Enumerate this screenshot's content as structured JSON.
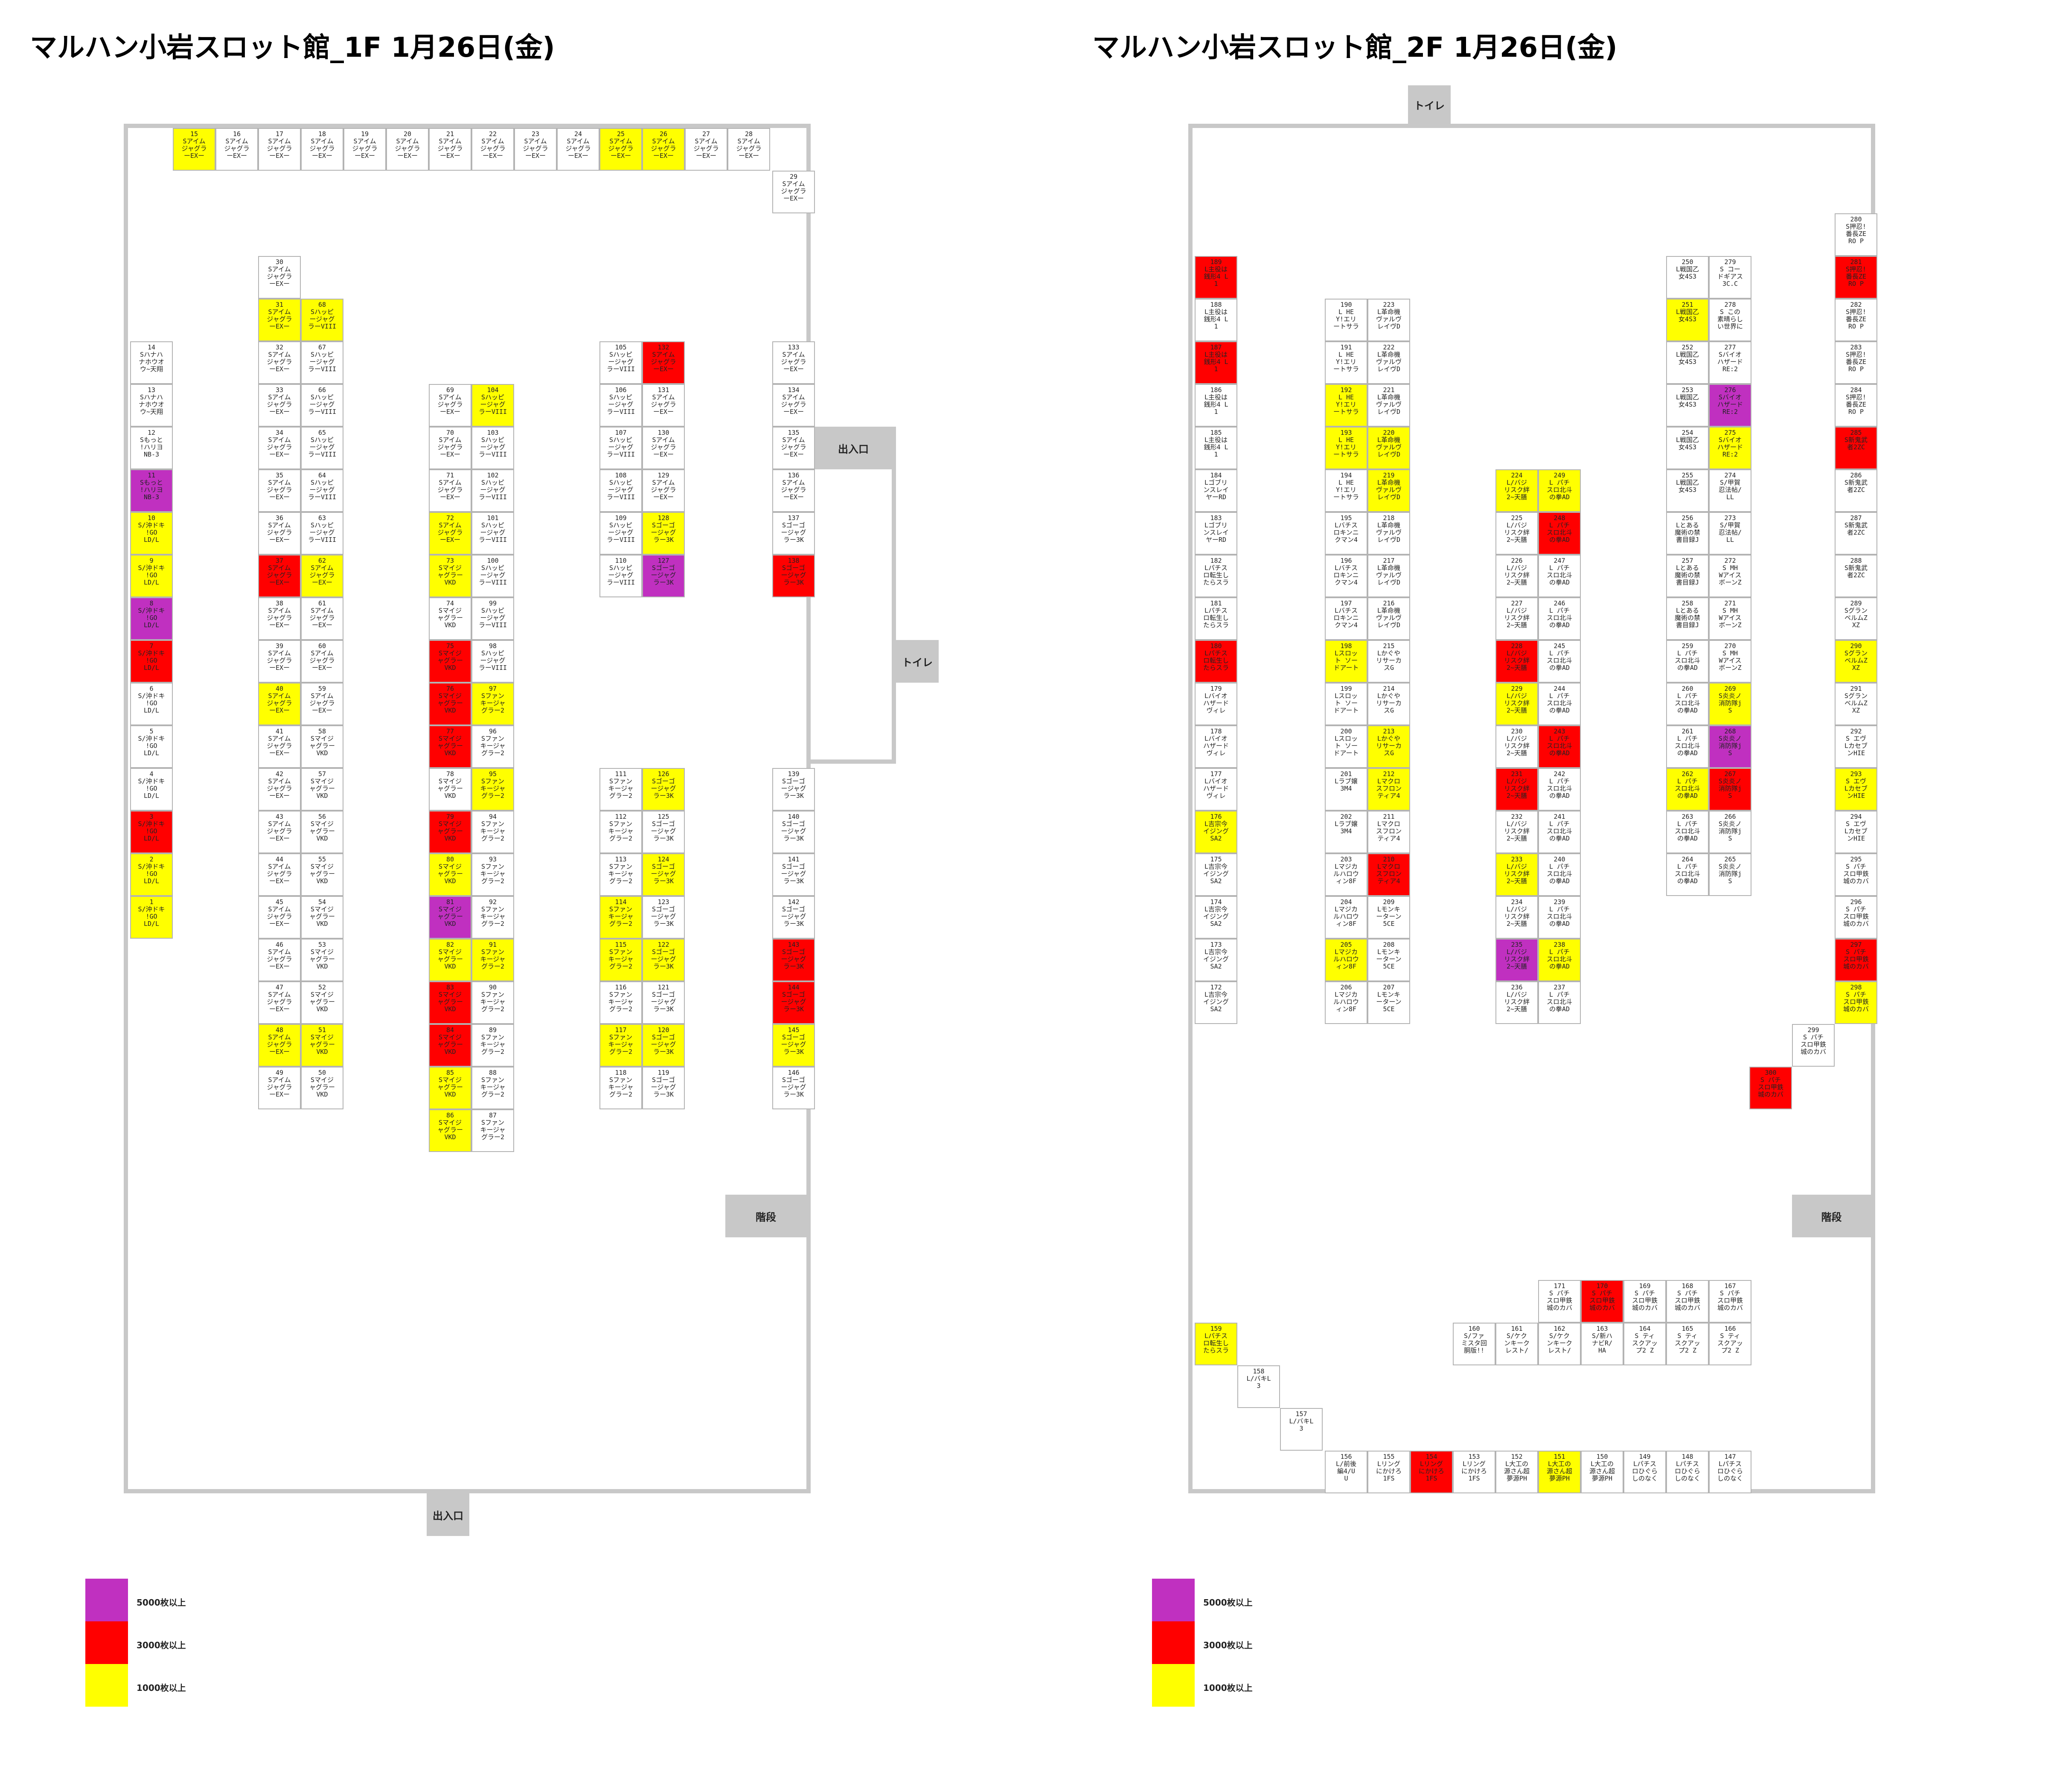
{
  "titles": {
    "floor1": "マルハン小岩スロット館_1F 1月26日(金)",
    "floor2": "マルハン小岩スロット館_2F 1月26日(金)"
  },
  "tags": {
    "entrance": "出入口",
    "toilet": "トイレ",
    "stairs": "階段"
  },
  "legend": [
    {
      "label": "5000枚以上",
      "color": "#c030c0"
    },
    {
      "label": "3000枚以上",
      "color": "#ff0000"
    },
    {
      "label": "1000枚以上",
      "color": "#ffff00"
    }
  ],
  "machines": {
    "aim": "Sアイム\nジャグラ\nーEXー",
    "happy": "Sハッピ\nージャグ\nラーVIII",
    "myjug": "Sマイジ\nャグラー\nVKD",
    "funky": "Sファン\nキージャ\nグラー2",
    "gogo": "Sゴーゴ\nージャグ\nラー3K",
    "okidoki": "S/沖ドキ\n!GO\nLD/L",
    "hanahana": "Sハナハ\nナホウオ\nウ~天翔",
    "motto": "Sもっと\n!ハリヨ\nNB-3",
    "hokuto": "L主役は\n銭形4 L\n1",
    "hey": "L HE\nY!エリ\nートサラ",
    "valv": "L革命機\nヴァルヴ\nレイヴD",
    "goblin": "Lゴブリ\nンスレイ\nヤーRD",
    "rokin": "Lバチス\nロキンニ\nクマン4",
    "tenka": "Lパチス\nロ転生し\nたらスラ",
    "bio": "Lバイオ\nハザード\nヴィレ",
    "sport": "Lスロッ\nト ソー\nドアート",
    "love": "Lラブ嬢\n3M4",
    "magica": "Lマジカ\nルハロウ\nィン8F",
    "kaguya": "Lかぐや\nリサーカ\nスG",
    "macross": "Lマクロ\nスフロン\nティア4",
    "monkey": "Lモンキ\nーターン\n5CE",
    "yoshimune": "L吉宗今\nイジング\nSA2",
    "banchou": "L/バジ\nリスク絆\n2~天膳",
    "hokuden": "L パチ\nスロ北斗\nの拳AD",
    "senkai": "L戦国乙\n女4S3",
    "toaru": "Lとある\n魔術の禁\n書目録J",
    "kagura": "S コー\nドギアス\n3C.C",
    "kono": "S この\n素晴らし\nい世界に",
    "re2": "Sバイオ\nハザード\nRE:2",
    "shinobi": "S/甲賀\n忍法帖/\nLL",
    "mh": "S MH\nWアイス\nボーンZ",
    "karakuri": "S炎炎ノ\n消防隊j\nS",
    "banzai": "S押忍!\n番長ZE\nRO P",
    "shinonike": "S新鬼武\n者2ZC",
    "guran": "Sグラン\nベルムZ\nXZ",
    "eva": "S エヴ\nLカセブ\nンHIE",
    "kaba": "S パチ\nスロ甲鉄\n城のカバ",
    "kizuna": "L/パチ\nスロ北斗\n斬獲1!",
    "ling": "Lリング\nにかけろ\n1FS",
    "daiku": "L大工の\n源さん超\n夢源PH",
    "pachikuro": "Lパチス\nロひぐら\nしのなく",
    "enen": "S/ファ\nミスタ回\n胴版!!",
    "kaiji": "S/ケク\nンキーク\nレスト/",
    "shinhana": "S/新ハ\nナビR/\nHA",
    "fee": "S ティ\nスクアッ\nプ2 Z",
    "banchou2": "L/前後\n編4/U\nU",
    "lkai": "L/バキL\n3"
  },
  "floor1": [
    [
      "15",
      "aim",
      "y"
    ],
    [
      "16",
      "aim",
      ""
    ],
    [
      "17",
      "aim",
      ""
    ],
    [
      "18",
      "aim",
      ""
    ],
    [
      "19",
      "aim",
      ""
    ],
    [
      "20",
      "aim",
      ""
    ],
    [
      "21",
      "aim",
      ""
    ],
    [
      "22",
      "aim",
      ""
    ],
    [
      "23",
      "aim",
      ""
    ],
    [
      "24",
      "aim",
      ""
    ],
    [
      "25",
      "aim",
      "y"
    ],
    [
      "26",
      "aim",
      "y"
    ],
    [
      "27",
      "aim",
      ""
    ],
    [
      "28",
      "aim",
      ""
    ],
    [
      "29",
      "aim",
      ""
    ],
    [
      "30",
      "aim",
      ""
    ],
    [
      "31",
      "aim",
      "y"
    ],
    [
      "68",
      "happy",
      "y"
    ],
    [
      "32",
      "aim",
      ""
    ],
    [
      "67",
      "happy",
      ""
    ],
    [
      "33",
      "aim",
      ""
    ],
    [
      "66",
      "happy",
      ""
    ],
    [
      "34",
      "aim",
      ""
    ],
    [
      "65",
      "happy",
      ""
    ],
    [
      "35",
      "aim",
      ""
    ],
    [
      "64",
      "happy",
      ""
    ],
    [
      "36",
      "aim",
      ""
    ],
    [
      "63",
      "happy",
      ""
    ],
    [
      "37",
      "aim",
      "r"
    ],
    [
      "62",
      "aim",
      "y"
    ],
    [
      "38",
      "aim",
      ""
    ],
    [
      "61",
      "aim",
      ""
    ],
    [
      "39",
      "aim",
      ""
    ],
    [
      "60",
      "aim",
      ""
    ],
    [
      "40",
      "aim",
      "y"
    ],
    [
      "59",
      "aim",
      ""
    ],
    [
      "41",
      "aim",
      ""
    ],
    [
      "58",
      "myjug",
      ""
    ],
    [
      "42",
      "aim",
      ""
    ],
    [
      "57",
      "myjug",
      ""
    ],
    [
      "43",
      "aim",
      ""
    ],
    [
      "56",
      "myjug",
      ""
    ],
    [
      "44",
      "aim",
      ""
    ],
    [
      "55",
      "myjug",
      ""
    ],
    [
      "45",
      "aim",
      ""
    ],
    [
      "54",
      "myjug",
      ""
    ],
    [
      "46",
      "aim",
      ""
    ],
    [
      "53",
      "myjug",
      ""
    ],
    [
      "47",
      "aim",
      ""
    ],
    [
      "52",
      "myjug",
      ""
    ],
    [
      "48",
      "aim",
      "y"
    ],
    [
      "51",
      "myjug",
      "y"
    ],
    [
      "49",
      "aim",
      ""
    ],
    [
      "50",
      "myjug",
      ""
    ],
    [
      "14",
      "hanahana",
      ""
    ],
    [
      "13",
      "hanahana",
      ""
    ],
    [
      "12",
      "motto",
      ""
    ],
    [
      "11",
      "motto",
      "p"
    ],
    [
      "10",
      "okidoki",
      "y"
    ],
    [
      "9",
      "okidoki",
      "y"
    ],
    [
      "8",
      "okidoki",
      "p"
    ],
    [
      "7",
      "okidoki",
      "r"
    ],
    [
      "6",
      "okidoki",
      ""
    ],
    [
      "5",
      "okidoki",
      ""
    ],
    [
      "4",
      "okidoki",
      ""
    ],
    [
      "3",
      "okidoki",
      "r"
    ],
    [
      "2",
      "okidoki",
      "y"
    ],
    [
      "1",
      "okidoki",
      "y"
    ],
    [
      "69",
      "aim",
      ""
    ],
    [
      "104",
      "happy",
      "y"
    ],
    [
      "70",
      "aim",
      ""
    ],
    [
      "103",
      "happy",
      ""
    ],
    [
      "71",
      "aim",
      ""
    ],
    [
      "102",
      "happy",
      ""
    ],
    [
      "72",
      "aim",
      "y"
    ],
    [
      "101",
      "happy",
      ""
    ],
    [
      "73",
      "myjug",
      "y"
    ],
    [
      "100",
      "happy",
      ""
    ],
    [
      "74",
      "myjug",
      ""
    ],
    [
      "99",
      "happy",
      ""
    ],
    [
      "75",
      "myjug",
      "r"
    ],
    [
      "98",
      "happy",
      ""
    ],
    [
      "76",
      "myjug",
      "r"
    ],
    [
      "97",
      "funky",
      "y"
    ],
    [
      "77",
      "myjug",
      "r"
    ],
    [
      "96",
      "funky",
      ""
    ],
    [
      "78",
      "myjug",
      ""
    ],
    [
      "95",
      "funky",
      "y"
    ],
    [
      "79",
      "myjug",
      "r"
    ],
    [
      "94",
      "funky",
      ""
    ],
    [
      "80",
      "myjug",
      "y"
    ],
    [
      "93",
      "funky",
      ""
    ],
    [
      "81",
      "myjug",
      "p"
    ],
    [
      "92",
      "funky",
      ""
    ],
    [
      "82",
      "myjug",
      "y"
    ],
    [
      "91",
      "funky",
      "y"
    ],
    [
      "83",
      "myjug",
      "r"
    ],
    [
      "90",
      "funky",
      ""
    ],
    [
      "84",
      "myjug",
      "r"
    ],
    [
      "89",
      "funky",
      ""
    ],
    [
      "85",
      "myjug",
      "y"
    ],
    [
      "88",
      "funky",
      ""
    ],
    [
      "86",
      "myjug",
      "y"
    ],
    [
      "87",
      "funky",
      ""
    ],
    [
      "105",
      "happy",
      ""
    ],
    [
      "132",
      "aim",
      "r"
    ],
    [
      "106",
      "happy",
      ""
    ],
    [
      "131",
      "aim",
      ""
    ],
    [
      "107",
      "happy",
      ""
    ],
    [
      "130",
      "aim",
      ""
    ],
    [
      "108",
      "happy",
      ""
    ],
    [
      "129",
      "aim",
      ""
    ],
    [
      "109",
      "happy",
      ""
    ],
    [
      "128",
      "gogo",
      "y"
    ],
    [
      "110",
      "happy",
      ""
    ],
    [
      "127",
      "gogo",
      "p"
    ],
    [
      "111",
      "funky",
      ""
    ],
    [
      "126",
      "gogo",
      "y"
    ],
    [
      "112",
      "funky",
      ""
    ],
    [
      "125",
      "gogo",
      ""
    ],
    [
      "113",
      "funky",
      ""
    ],
    [
      "124",
      "gogo",
      "y"
    ],
    [
      "114",
      "funky",
      "y"
    ],
    [
      "123",
      "gogo",
      ""
    ],
    [
      "115",
      "funky",
      "y"
    ],
    [
      "122",
      "gogo",
      "y"
    ],
    [
      "116",
      "funky",
      ""
    ],
    [
      "121",
      "gogo",
      ""
    ],
    [
      "117",
      "funky",
      "y"
    ],
    [
      "120",
      "gogo",
      "y"
    ],
    [
      "118",
      "funky",
      ""
    ],
    [
      "119",
      "gogo",
      ""
    ],
    [
      "133",
      "aim",
      ""
    ],
    [
      "134",
      "aim",
      ""
    ],
    [
      "135",
      "aim",
      ""
    ],
    [
      "136",
      "aim",
      ""
    ],
    [
      "137",
      "gogo",
      ""
    ],
    [
      "138",
      "gogo",
      "r"
    ],
    [
      "139",
      "gogo",
      ""
    ],
    [
      "140",
      "gogo",
      ""
    ],
    [
      "141",
      "gogo",
      ""
    ],
    [
      "142",
      "gogo",
      ""
    ],
    [
      "143",
      "gogo",
      "r"
    ],
    [
      "144",
      "gogo",
      "r"
    ],
    [
      "145",
      "gogo",
      "y"
    ],
    [
      "146",
      "gogo",
      ""
    ]
  ],
  "floor2": [
    [
      "189",
      "hokuto",
      "r"
    ],
    [
      "188",
      "hokuto",
      ""
    ],
    [
      "187",
      "hokuto",
      "r"
    ],
    [
      "186",
      "hokuto",
      ""
    ],
    [
      "185",
      "hokuto",
      ""
    ],
    [
      "184",
      "goblin",
      ""
    ],
    [
      "183",
      "goblin",
      ""
    ],
    [
      "182",
      "tenka",
      ""
    ],
    [
      "181",
      "tenka",
      ""
    ],
    [
      "180",
      "tenka",
      "r"
    ],
    [
      "179",
      "bio",
      ""
    ],
    [
      "178",
      "bio",
      ""
    ],
    [
      "177",
      "bio",
      ""
    ],
    [
      "176",
      "yoshimune",
      "y"
    ],
    [
      "175",
      "yoshimune",
      ""
    ],
    [
      "174",
      "yoshimune",
      ""
    ],
    [
      "173",
      "yoshimune",
      ""
    ],
    [
      "172",
      "yoshimune",
      ""
    ],
    [
      "190",
      "hey",
      ""
    ],
    [
      "223",
      "valv",
      ""
    ],
    [
      "191",
      "hey",
      ""
    ],
    [
      "222",
      "valv",
      ""
    ],
    [
      "192",
      "hey",
      "y"
    ],
    [
      "221",
      "valv",
      ""
    ],
    [
      "193",
      "hey",
      "y"
    ],
    [
      "220",
      "valv",
      "y"
    ],
    [
      "194",
      "hey",
      ""
    ],
    [
      "219",
      "valv",
      "y"
    ],
    [
      "195",
      "rokin",
      ""
    ],
    [
      "218",
      "valv",
      ""
    ],
    [
      "196",
      "rokin",
      ""
    ],
    [
      "217",
      "valv",
      ""
    ],
    [
      "197",
      "rokin",
      ""
    ],
    [
      "216",
      "valv",
      ""
    ],
    [
      "198",
      "sport",
      "y"
    ],
    [
      "215",
      "kaguya",
      ""
    ],
    [
      "199",
      "sport",
      ""
    ],
    [
      "214",
      "kaguya",
      ""
    ],
    [
      "200",
      "sport",
      ""
    ],
    [
      "213",
      "kaguya",
      "y"
    ],
    [
      "201",
      "love",
      ""
    ],
    [
      "212",
      "macross",
      "y"
    ],
    [
      "202",
      "love",
      ""
    ],
    [
      "211",
      "macross",
      ""
    ],
    [
      "203",
      "magica",
      ""
    ],
    [
      "210",
      "macross",
      "r"
    ],
    [
      "204",
      "magica",
      ""
    ],
    [
      "209",
      "monkey",
      ""
    ],
    [
      "205",
      "magica",
      "y"
    ],
    [
      "208",
      "monkey",
      ""
    ],
    [
      "206",
      "magica",
      ""
    ],
    [
      "207",
      "monkey",
      ""
    ],
    [
      "224",
      "banchou",
      "y"
    ],
    [
      "249",
      "hokuden",
      "y"
    ],
    [
      "225",
      "banchou",
      ""
    ],
    [
      "248",
      "hokuden",
      "r"
    ],
    [
      "226",
      "banchou",
      ""
    ],
    [
      "247",
      "hokuden",
      ""
    ],
    [
      "227",
      "banchou",
      ""
    ],
    [
      "246",
      "hokuden",
      ""
    ],
    [
      "228",
      "banchou",
      "r"
    ],
    [
      "245",
      "hokuden",
      ""
    ],
    [
      "229",
      "banchou",
      "y"
    ],
    [
      "244",
      "hokuden",
      ""
    ],
    [
      "230",
      "banchou",
      ""
    ],
    [
      "243",
      "hokuden",
      "r"
    ],
    [
      "231",
      "banchou",
      "r"
    ],
    [
      "242",
      "hokuden",
      ""
    ],
    [
      "232",
      "banchou",
      ""
    ],
    [
      "241",
      "hokuden",
      ""
    ],
    [
      "233",
      "banchou",
      "y"
    ],
    [
      "240",
      "hokuden",
      ""
    ],
    [
      "234",
      "banchou",
      ""
    ],
    [
      "239",
      "hokuden",
      ""
    ],
    [
      "235",
      "banchou",
      "p"
    ],
    [
      "238",
      "hokuden",
      "y"
    ],
    [
      "236",
      "banchou",
      ""
    ],
    [
      "237",
      "hokuden",
      ""
    ],
    [
      "250",
      "senkai",
      ""
    ],
    [
      "279",
      "kagura",
      ""
    ],
    [
      "251",
      "senkai",
      "y"
    ],
    [
      "278",
      "kono",
      ""
    ],
    [
      "252",
      "senkai",
      ""
    ],
    [
      "277",
      "re2",
      ""
    ],
    [
      "253",
      "senkai",
      ""
    ],
    [
      "276",
      "re2",
      "p"
    ],
    [
      "254",
      "senkai",
      ""
    ],
    [
      "275",
      "re2",
      "y"
    ],
    [
      "255",
      "senkai",
      ""
    ],
    [
      "274",
      "shinobi",
      ""
    ],
    [
      "256",
      "toaru",
      ""
    ],
    [
      "273",
      "shinobi",
      ""
    ],
    [
      "257",
      "toaru",
      ""
    ],
    [
      "272",
      "mh",
      ""
    ],
    [
      "258",
      "toaru",
      ""
    ],
    [
      "271",
      "mh",
      ""
    ],
    [
      "259",
      "hokuden",
      ""
    ],
    [
      "270",
      "mh",
      ""
    ],
    [
      "260",
      "hokuden",
      ""
    ],
    [
      "269",
      "karakuri",
      "y"
    ],
    [
      "261",
      "hokuden",
      ""
    ],
    [
      "268",
      "karakuri",
      "p"
    ],
    [
      "262",
      "hokuden",
      "y"
    ],
    [
      "267",
      "karakuri",
      "r"
    ],
    [
      "263",
      "hokuden",
      ""
    ],
    [
      "266",
      "karakuri",
      ""
    ],
    [
      "264",
      "hokuden",
      ""
    ],
    [
      "265",
      "karakuri",
      ""
    ],
    [
      "280",
      "banzai",
      ""
    ],
    [
      "281",
      "banzai",
      "r"
    ],
    [
      "282",
      "banzai",
      ""
    ],
    [
      "283",
      "banzai",
      ""
    ],
    [
      "284",
      "banzai",
      ""
    ],
    [
      "285",
      "shinonike",
      "r"
    ],
    [
      "286",
      "shinonike",
      ""
    ],
    [
      "287",
      "shinonike",
      ""
    ],
    [
      "288",
      "shinonike",
      ""
    ],
    [
      "289",
      "guran",
      ""
    ],
    [
      "290",
      "guran",
      "y"
    ],
    [
      "291",
      "guran",
      ""
    ],
    [
      "292",
      "eva",
      ""
    ],
    [
      "293",
      "eva",
      "y"
    ],
    [
      "294",
      "eva",
      ""
    ],
    [
      "295",
      "kaba",
      ""
    ],
    [
      "296",
      "kaba",
      ""
    ],
    [
      "297",
      "kaba",
      "r"
    ],
    [
      "298",
      "kaba",
      "y"
    ],
    [
      "299",
      "kaba",
      ""
    ],
    [
      "300",
      "kaba",
      "r"
    ],
    [
      "171",
      "kaba",
      ""
    ],
    [
      "170",
      "kaba",
      "r"
    ],
    [
      "169",
      "kaba",
      ""
    ],
    [
      "168",
      "kaba",
      ""
    ],
    [
      "167",
      "kaba",
      ""
    ],
    [
      "160",
      "enen",
      ""
    ],
    [
      "161",
      "kaiji",
      ""
    ],
    [
      "162",
      "kaiji",
      ""
    ],
    [
      "163",
      "shinhana",
      ""
    ],
    [
      "164",
      "fee",
      ""
    ],
    [
      "165",
      "fee",
      ""
    ],
    [
      "166",
      "fee",
      ""
    ],
    [
      "159",
      "tenka",
      "y"
    ],
    [
      "158",
      "lkai",
      ""
    ],
    [
      "157",
      "lkai",
      ""
    ],
    [
      "156",
      "banchou2",
      ""
    ],
    [
      "155",
      "ling",
      ""
    ],
    [
      "154",
      "ling",
      "r"
    ],
    [
      "153",
      "ling",
      ""
    ],
    [
      "152",
      "daiku",
      ""
    ],
    [
      "151",
      "daiku",
      "y"
    ],
    [
      "150",
      "daiku",
      ""
    ],
    [
      "149",
      "pachikuro",
      ""
    ],
    [
      "148",
      "pachikuro",
      ""
    ],
    [
      "147",
      "pachikuro",
      ""
    ]
  ]
}
